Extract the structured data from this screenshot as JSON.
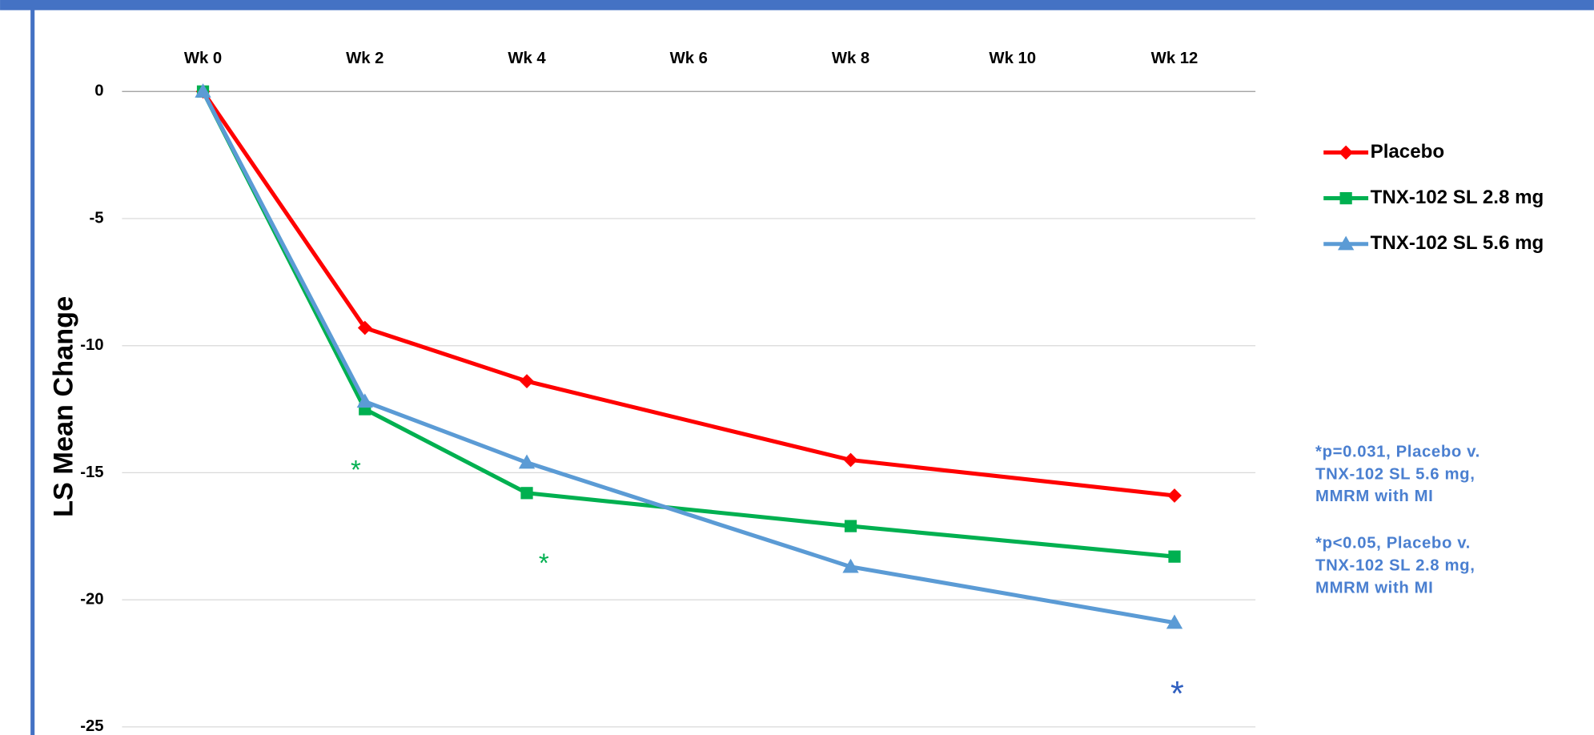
{
  "chart_data": {
    "type": "line",
    "y_label": "LS Mean Change",
    "x": [
      0,
      2,
      4,
      8,
      12
    ],
    "xlim": [
      -1,
      13
    ],
    "xticks": [
      {
        "value": 0,
        "label": "Wk 0"
      },
      {
        "value": 2,
        "label": "Wk 2"
      },
      {
        "value": 4,
        "label": "Wk 4"
      },
      {
        "value": 6,
        "label": "Wk 6"
      },
      {
        "value": 8,
        "label": "Wk 8"
      },
      {
        "value": 10,
        "label": "Wk 10"
      },
      {
        "value": 12,
        "label": "Wk 12"
      }
    ],
    "ylim": [
      -25,
      0
    ],
    "yticks": [
      0,
      -5,
      -10,
      -15,
      -20,
      -25
    ],
    "grid": true,
    "legend": "right",
    "series": [
      {
        "name": "Placebo",
        "color": "#ff0000",
        "marker": "diamond",
        "values": [
          0,
          -9.3,
          -11.4,
          -14.5,
          -15.9
        ]
      },
      {
        "name": "TNX-102 SL 2.8 mg",
        "color": "#00b050",
        "marker": "square",
        "values": [
          0,
          -12.5,
          -15.8,
          -17.1,
          -18.3
        ]
      },
      {
        "name": "TNX-102 SL 5.6 mg",
        "color": "#5b9bd5",
        "marker": "triangle",
        "values": [
          0,
          -12.2,
          -14.6,
          -18.7,
          -20.9
        ]
      }
    ],
    "annotations": [
      {
        "text": "*",
        "color": "#00b050"
      },
      {
        "text": "*",
        "color": "#00b050"
      },
      {
        "text": "*",
        "color": "#2f5fc0"
      }
    ],
    "notes": [
      [
        "*p=0.031, Placebo v.",
        "TNX-102 SL 5.6 mg,",
        "MMRM with MI"
      ],
      [
        "*p<0.05, Placebo v.",
        "TNX-102 SL 2.8 mg,",
        "MMRM with MI"
      ]
    ]
  }
}
